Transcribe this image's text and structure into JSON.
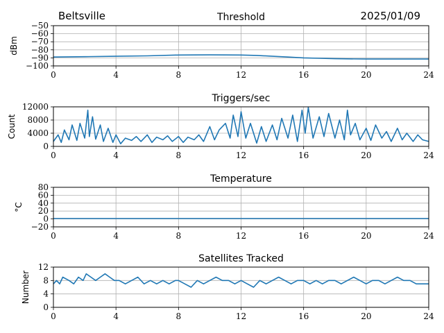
{
  "header": {
    "location": "Beltsville",
    "date": "2025/01/09"
  },
  "colors": {
    "series": "#1f77b4",
    "grid": "#b0b0b0",
    "axis": "#000000"
  },
  "chart_data": [
    {
      "type": "line",
      "title": "Threshold",
      "xlabel": "",
      "ylabel": "dBm",
      "xlim": [
        0,
        24
      ],
      "ylim": [
        -100,
        -50
      ],
      "xticks": [
        0,
        4,
        8,
        12,
        16,
        20,
        24
      ],
      "yticks": [
        -100,
        -90,
        -80,
        -70,
        -60,
        -50
      ],
      "grid": true,
      "series": [
        {
          "x": [
            0,
            2,
            4,
            6,
            8,
            10,
            12,
            13,
            14,
            15,
            16,
            17,
            18,
            20,
            22,
            24
          ],
          "y": [
            -89,
            -88.5,
            -88,
            -87.5,
            -86.5,
            -86.3,
            -86.5,
            -87,
            -88,
            -89,
            -90,
            -90.5,
            -91,
            -91.5,
            -91.5,
            -91.5
          ]
        }
      ]
    },
    {
      "type": "line",
      "title": "Triggers/sec",
      "xlabel": "",
      "ylabel": "Count",
      "xlim": [
        0,
        24
      ],
      "ylim": [
        0,
        12000
      ],
      "xticks": [
        0,
        4,
        8,
        12,
        16,
        20,
        24
      ],
      "yticks": [
        0,
        4000,
        8000,
        12000
      ],
      "grid": true,
      "series": [
        {
          "x": [
            0,
            0.3,
            0.5,
            0.7,
            1.0,
            1.2,
            1.5,
            1.7,
            2.0,
            2.2,
            2.3,
            2.5,
            2.7,
            3.0,
            3.2,
            3.5,
            3.8,
            4.0,
            4.3,
            4.6,
            5.0,
            5.3,
            5.6,
            6.0,
            6.3,
            6.6,
            7.0,
            7.3,
            7.6,
            8.0,
            8.3,
            8.6,
            9.0,
            9.3,
            9.6,
            10.0,
            10.3,
            10.6,
            11.0,
            11.3,
            11.5,
            11.8,
            12.0,
            12.3,
            12.6,
            13.0,
            13.3,
            13.6,
            14.0,
            14.3,
            14.6,
            15.0,
            15.3,
            15.6,
            15.9,
            16.1,
            16.3,
            16.6,
            17.0,
            17.3,
            17.6,
            18.0,
            18.3,
            18.6,
            18.8,
            19.0,
            19.3,
            19.6,
            20.0,
            20.3,
            20.6,
            21.0,
            21.3,
            21.6,
            22.0,
            22.3,
            22.6,
            23.0,
            23.3,
            23.6,
            24.0
          ],
          "y": [
            1500,
            3500,
            1200,
            5000,
            2000,
            6500,
            1800,
            7000,
            2500,
            11000,
            3000,
            9000,
            2200,
            6500,
            1500,
            5500,
            1200,
            3500,
            800,
            2500,
            1800,
            3000,
            1500,
            3500,
            1200,
            2800,
            2000,
            3200,
            1500,
            3000,
            1200,
            2800,
            2000,
            3500,
            1500,
            6000,
            2000,
            5000,
            7000,
            2500,
            9500,
            3000,
            10500,
            2500,
            7000,
            1000,
            6000,
            1500,
            6500,
            2000,
            8500,
            2500,
            9500,
            1500,
            11000,
            4000,
            11800,
            2500,
            9000,
            3000,
            10000,
            2500,
            8000,
            2000,
            11000,
            3500,
            7000,
            2000,
            5500,
            1800,
            6500,
            2500,
            4500,
            1500,
            5500,
            2000,
            4000,
            1500,
            3500,
            2000,
            1500
          ]
        }
      ]
    },
    {
      "type": "line",
      "title": "Temperature",
      "xlabel": "",
      "ylabel": "°C",
      "xlim": [
        0,
        24
      ],
      "ylim": [
        -20,
        80
      ],
      "xticks": [
        0,
        4,
        8,
        12,
        16,
        20,
        24
      ],
      "yticks": [
        -20,
        0,
        20,
        40,
        60,
        80
      ],
      "grid": true,
      "series": [
        {
          "x": [
            0,
            24
          ],
          "y": [
            1,
            1
          ]
        }
      ]
    },
    {
      "type": "line",
      "title": "Satellites Tracked",
      "xlabel": "",
      "ylabel": "Number",
      "xlim": [
        0,
        24
      ],
      "ylim": [
        0,
        12
      ],
      "xticks": [
        0,
        4,
        8,
        12,
        16,
        20,
        24
      ],
      "yticks": [
        0,
        4,
        8,
        12
      ],
      "grid": true,
      "series": [
        {
          "x": [
            0,
            0.2,
            0.4,
            0.6,
            1.0,
            1.3,
            1.6,
            1.9,
            2.1,
            2.4,
            2.7,
            3.0,
            3.3,
            3.6,
            3.9,
            4.2,
            4.6,
            5.0,
            5.4,
            5.8,
            6.2,
            6.6,
            7.0,
            7.4,
            7.8,
            8.0,
            8.4,
            8.8,
            9.2,
            9.6,
            10.0,
            10.4,
            10.8,
            11.2,
            11.6,
            12.0,
            12.4,
            12.8,
            13.2,
            13.6,
            14.0,
            14.4,
            14.8,
            15.2,
            15.6,
            16.0,
            16.4,
            16.8,
            17.2,
            17.6,
            18.0,
            18.4,
            18.8,
            19.2,
            19.6,
            20.0,
            20.4,
            20.8,
            21.2,
            21.6,
            22.0,
            22.4,
            22.8,
            23.2,
            23.6,
            24.0
          ],
          "y": [
            7,
            8,
            7,
            9,
            8,
            7,
            9,
            8,
            10,
            9,
            8,
            9,
            10,
            9,
            8,
            8,
            7,
            8,
            9,
            7,
            8,
            7,
            8,
            7,
            8,
            8,
            7,
            6,
            8,
            7,
            8,
            9,
            8,
            8,
            7,
            8,
            7,
            6,
            8,
            7,
            8,
            9,
            8,
            7,
            8,
            8,
            7,
            8,
            7,
            8,
            8,
            7,
            8,
            9,
            8,
            7,
            8,
            8,
            7,
            8,
            9,
            8,
            8,
            7,
            7,
            7
          ]
        }
      ]
    }
  ]
}
